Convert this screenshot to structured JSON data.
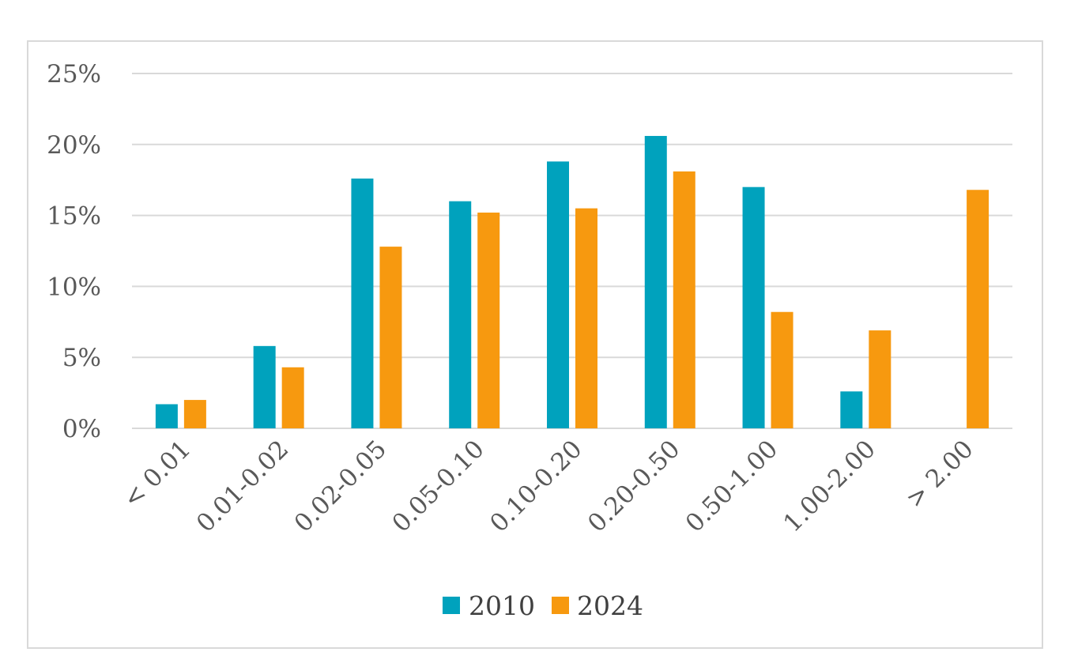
{
  "chart_data": {
    "type": "bar",
    "categories": [
      "< 0.01",
      "0.01-0.02",
      "0.02-0.05",
      "0.05-0.10",
      "0.10-0.20",
      "0.20-0.50",
      "0.50-1.00",
      "1.00-2.00",
      "> 2.00"
    ],
    "series": [
      {
        "name": "2010",
        "color": "#00a2bd",
        "values": [
          1.7,
          5.8,
          17.6,
          16.0,
          18.8,
          20.6,
          17.0,
          2.6,
          0
        ]
      },
      {
        "name": "2024",
        "color": "#f7990f",
        "values": [
          2.0,
          4.3,
          12.8,
          15.2,
          15.5,
          18.1,
          8.2,
          6.9,
          16.8
        ]
      }
    ],
    "y_tick_labels": [
      "0%",
      "5%",
      "10%",
      "15%",
      "20%",
      "25%"
    ],
    "y_ticks": [
      0,
      5,
      10,
      15,
      20,
      25
    ],
    "ylim": [
      0,
      25
    ],
    "grid": true,
    "gridline_color": "#d9d9d9",
    "legend_position": "bottom",
    "title": "",
    "xlabel": "",
    "ylabel": ""
  }
}
